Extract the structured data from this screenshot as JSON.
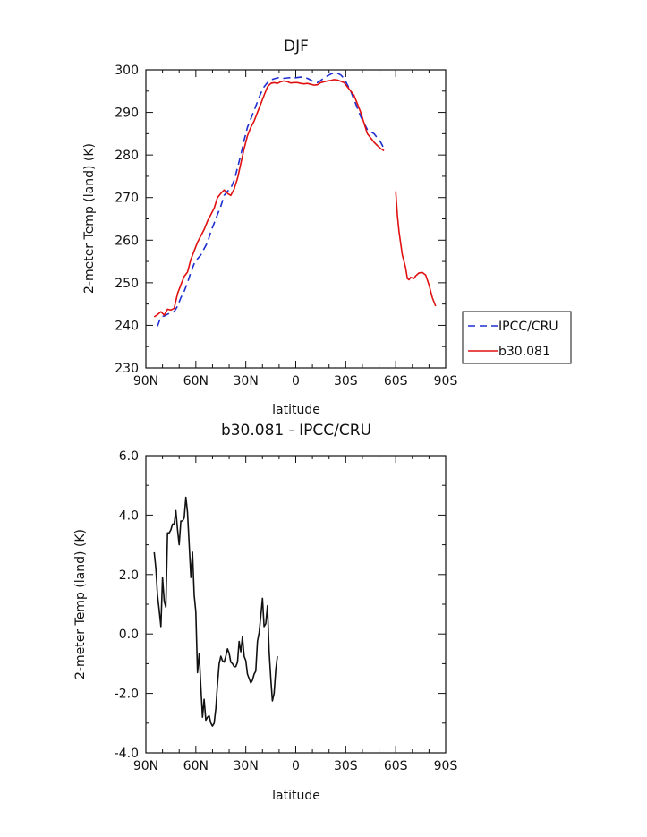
{
  "chart_data": [
    {
      "type": "line",
      "title": "DJF",
      "xlabel": "latitude",
      "ylabel": "2-meter Temp (land) (K)",
      "xlim": [
        90,
        -90
      ],
      "ylim": [
        230,
        300
      ],
      "x_ticks": [
        90,
        60,
        30,
        0,
        -30,
        -60,
        -90
      ],
      "x_tick_labels": [
        "90N",
        "60N",
        "30N",
        "0",
        "30S",
        "60S",
        "90S"
      ],
      "y_ticks": [
        230,
        240,
        250,
        260,
        270,
        280,
        290,
        300
      ],
      "y_tick_labels": [
        "230",
        "240",
        "250",
        "260",
        "270",
        "280",
        "290",
        "300"
      ],
      "legend_position": "outside-right",
      "grid": false,
      "series": [
        {
          "name": "IPCC/CRU",
          "color": "#1f2fd0",
          "dash": "dashed",
          "segments": [
            [
              [
                83,
                239.8
              ],
              [
                81,
                242
              ],
              [
                79,
                242.2
              ],
              [
                77,
                242.6
              ],
              [
                75,
                243
              ],
              [
                73,
                243.2
              ],
              [
                71,
                244.5
              ],
              [
                69,
                246.5
              ],
              [
                67,
                248
              ],
              [
                65,
                250
              ],
              [
                63,
                252.5
              ],
              [
                61,
                254.5
              ],
              [
                59,
                255.6
              ],
              [
                57,
                256.5
              ],
              [
                55,
                258
              ],
              [
                53,
                259.5
              ],
              [
                51,
                262
              ],
              [
                49,
                264
              ],
              [
                47,
                266
              ],
              [
                45,
                268
              ],
              [
                43,
                270.5
              ],
              [
                41,
                271.5
              ],
              [
                39,
                272.2
              ],
              [
                37,
                274
              ],
              [
                35,
                277
              ],
              [
                33,
                280
              ],
              [
                31,
                283.5
              ],
              [
                29,
                286.5
              ],
              [
                27,
                288.5
              ],
              [
                25,
                290.5
              ],
              [
                23,
                292.5
              ],
              [
                21,
                294.5
              ],
              [
                19,
                296
              ],
              [
                17,
                297
              ],
              [
                15,
                297.6
              ],
              [
                13,
                297.9
              ],
              [
                11,
                298.1
              ],
              [
                9,
                298.2
              ],
              [
                7,
                298
              ],
              [
                5,
                298.1
              ],
              [
                3,
                298.2
              ],
              [
                1,
                298.1
              ],
              [
                -1,
                298.2
              ],
              [
                -3,
                298.3
              ],
              [
                -5,
                298.2
              ],
              [
                -7,
                298
              ],
              [
                -9,
                297.6
              ],
              [
                -11,
                297.1
              ],
              [
                -13,
                297
              ],
              [
                -15,
                297.5
              ],
              [
                -17,
                298.1
              ],
              [
                -19,
                298.6
              ],
              [
                -21,
                299
              ],
              [
                -23,
                299.3
              ],
              [
                -25,
                299.2
              ],
              [
                -27,
                298.8
              ],
              [
                -29,
                298
              ],
              [
                -31,
                296.5
              ],
              [
                -33,
                295
              ],
              [
                -35,
                293
              ],
              [
                -37,
                291
              ],
              [
                -39,
                289
              ],
              [
                -41,
                287.5
              ],
              [
                -43,
                286
              ],
              [
                -45,
                285.5
              ],
              [
                -47,
                285
              ],
              [
                -49,
                284
              ],
              [
                -51,
                283
              ],
              [
                -53,
                281.5
              ]
            ]
          ]
        },
        {
          "name": "b30.081",
          "color": "#e01010",
          "dash": "solid",
          "segments": [
            [
              [
                85,
                242
              ],
              [
                83,
                242.5
              ],
              [
                81,
                243.2
              ],
              [
                79,
                242.4
              ],
              [
                77,
                243.8
              ],
              [
                75,
                243.6
              ],
              [
                73,
                244
              ],
              [
                71,
                247.5
              ],
              [
                69,
                249.5
              ],
              [
                67,
                251.5
              ],
              [
                65,
                252.5
              ],
              [
                63,
                255.5
              ],
              [
                61,
                257.5
              ],
              [
                59,
                259.5
              ],
              [
                57,
                261
              ],
              [
                55,
                262.5
              ],
              [
                53,
                264.5
              ],
              [
                51,
                266
              ],
              [
                49,
                267.5
              ],
              [
                47,
                270
              ],
              [
                45,
                271
              ],
              [
                43,
                271.8
              ],
              [
                41,
                271
              ],
              [
                39,
                270.5
              ],
              [
                37,
                272
              ],
              [
                35,
                274.5
              ],
              [
                33,
                278
              ],
              [
                31,
                281.5
              ],
              [
                29,
                284.5
              ],
              [
                27,
                286.5
              ],
              [
                25,
                288
              ],
              [
                23,
                290
              ],
              [
                21,
                292
              ],
              [
                19,
                294
              ],
              [
                17,
                296
              ],
              [
                15,
                296.8
              ],
              [
                13,
                297
              ],
              [
                11,
                296.8
              ],
              [
                9,
                297.2
              ],
              [
                7,
                297.4
              ],
              [
                5,
                297.2
              ],
              [
                3,
                296.9
              ],
              [
                1,
                297
              ],
              [
                -1,
                297
              ],
              [
                -3,
                296.8
              ],
              [
                -5,
                296.7
              ],
              [
                -7,
                296.8
              ],
              [
                -9,
                296.6
              ],
              [
                -11,
                296.4
              ],
              [
                -13,
                296.5
              ],
              [
                -15,
                297
              ],
              [
                -17,
                297.2
              ],
              [
                -19,
                297.4
              ],
              [
                -21,
                297.5
              ],
              [
                -23,
                297.7
              ],
              [
                -25,
                297.6
              ],
              [
                -27,
                297.3
              ],
              [
                -29,
                297
              ],
              [
                -31,
                296
              ],
              [
                -33,
                295
              ],
              [
                -35,
                294
              ],
              [
                -37,
                292
              ],
              [
                -39,
                290
              ],
              [
                -41,
                287.5
              ],
              [
                -43,
                285
              ],
              [
                -45,
                284
              ],
              [
                -47,
                283
              ],
              [
                -49,
                282.2
              ],
              [
                -51,
                281.5
              ],
              [
                -53,
                281
              ]
            ],
            [
              [
                -60,
                271.5
              ],
              [
                -61,
                266
              ],
              [
                -62,
                262
              ],
              [
                -64,
                256.5
              ],
              [
                -65,
                255
              ],
              [
                -66,
                253.5
              ],
              [
                -67,
                251
              ],
              [
                -68,
                250.7
              ],
              [
                -69,
                251.3
              ],
              [
                -71,
                251
              ],
              [
                -72,
                251.6
              ],
              [
                -74,
                252.3
              ],
              [
                -76,
                252.4
              ],
              [
                -78,
                251.8
              ],
              [
                -80,
                249.5
              ],
              [
                -82,
                246.5
              ],
              [
                -84,
                244.5
              ]
            ]
          ]
        }
      ]
    },
    {
      "type": "line",
      "title": "b30.081 - IPCC/CRU",
      "xlabel": "latitude",
      "ylabel": "2-meter Temp (land) (K)",
      "xlim": [
        90,
        -90
      ],
      "ylim": [
        -4,
        6
      ],
      "x_ticks": [
        90,
        60,
        30,
        0,
        -30,
        -60,
        -90
      ],
      "x_tick_labels": [
        "90N",
        "60N",
        "30N",
        "0",
        "30S",
        "60S",
        "90S"
      ],
      "y_ticks": [
        -4,
        -2,
        0,
        2,
        4,
        6
      ],
      "y_tick_labels": [
        "-4.0",
        "-2.0",
        "0.0",
        "2.0",
        "4.0",
        "6.0"
      ],
      "grid": false,
      "series": [
        {
          "color": "#111111",
          "dash": "solid",
          "segments": [
            [
              [
                85,
                2.75
              ],
              [
                84,
                2.2
              ],
              [
                83,
                1.3
              ],
              [
                82,
                0.8
              ],
              [
                81,
                0.25
              ],
              [
                80,
                1.9
              ],
              [
                79,
                1.1
              ],
              [
                78,
                0.9
              ],
              [
                77,
                3.4
              ],
              [
                76,
                3.4
              ],
              [
                75,
                3.5
              ],
              [
                74,
                3.7
              ],
              [
                73,
                3.7
              ],
              [
                72,
                4.15
              ],
              [
                71,
                3.5
              ],
              [
                70,
                3.0
              ],
              [
                69,
                3.8
              ],
              [
                68,
                3.8
              ],
              [
                67,
                3.9
              ],
              [
                66,
                4.6
              ],
              [
                65,
                4.1
              ],
              [
                64,
                3.0
              ],
              [
                63,
                1.9
              ],
              [
                62,
                2.75
              ],
              [
                61,
                1.3
              ],
              [
                60,
                0.75
              ],
              [
                59,
                -1.3
              ],
              [
                58,
                -0.65
              ],
              [
                57,
                -1.75
              ],
              [
                56,
                -2.8
              ],
              [
                55,
                -2.2
              ],
              [
                54,
                -2.9
              ],
              [
                53,
                -2.8
              ],
              [
                52,
                -2.75
              ],
              [
                51,
                -3.0
              ],
              [
                50,
                -3.1
              ],
              [
                49,
                -3.0
              ],
              [
                48,
                -2.5
              ],
              [
                47,
                -1.7
              ],
              [
                46,
                -1.0
              ],
              [
                45,
                -0.75
              ],
              [
                44,
                -0.9
              ],
              [
                43,
                -0.95
              ],
              [
                42,
                -0.75
              ],
              [
                41,
                -0.5
              ],
              [
                40,
                -0.65
              ],
              [
                39,
                -0.95
              ],
              [
                38,
                -1.0
              ],
              [
                37,
                -1.1
              ],
              [
                36,
                -1.1
              ],
              [
                35,
                -0.95
              ],
              [
                34,
                -0.25
              ],
              [
                33,
                -0.6
              ],
              [
                32,
                -0.1
              ],
              [
                31,
                -0.75
              ],
              [
                30,
                -0.9
              ],
              [
                29,
                -1.35
              ],
              [
                28,
                -1.5
              ],
              [
                27,
                -1.65
              ],
              [
                26,
                -1.55
              ],
              [
                25,
                -1.35
              ],
              [
                24,
                -1.25
              ],
              [
                23,
                -0.25
              ],
              [
                22,
                0.05
              ],
              [
                21,
                0.6
              ],
              [
                20,
                1.2
              ],
              [
                19,
                0.25
              ],
              [
                18,
                0.35
              ],
              [
                17,
                0.95
              ],
              [
                16,
                -0.55
              ],
              [
                15,
                -1.5
              ],
              [
                14,
                -2.25
              ],
              [
                13,
                -2.0
              ],
              [
                12,
                -1.2
              ],
              [
                11,
                -0.75
              ]
            ]
          ]
        }
      ]
    }
  ]
}
